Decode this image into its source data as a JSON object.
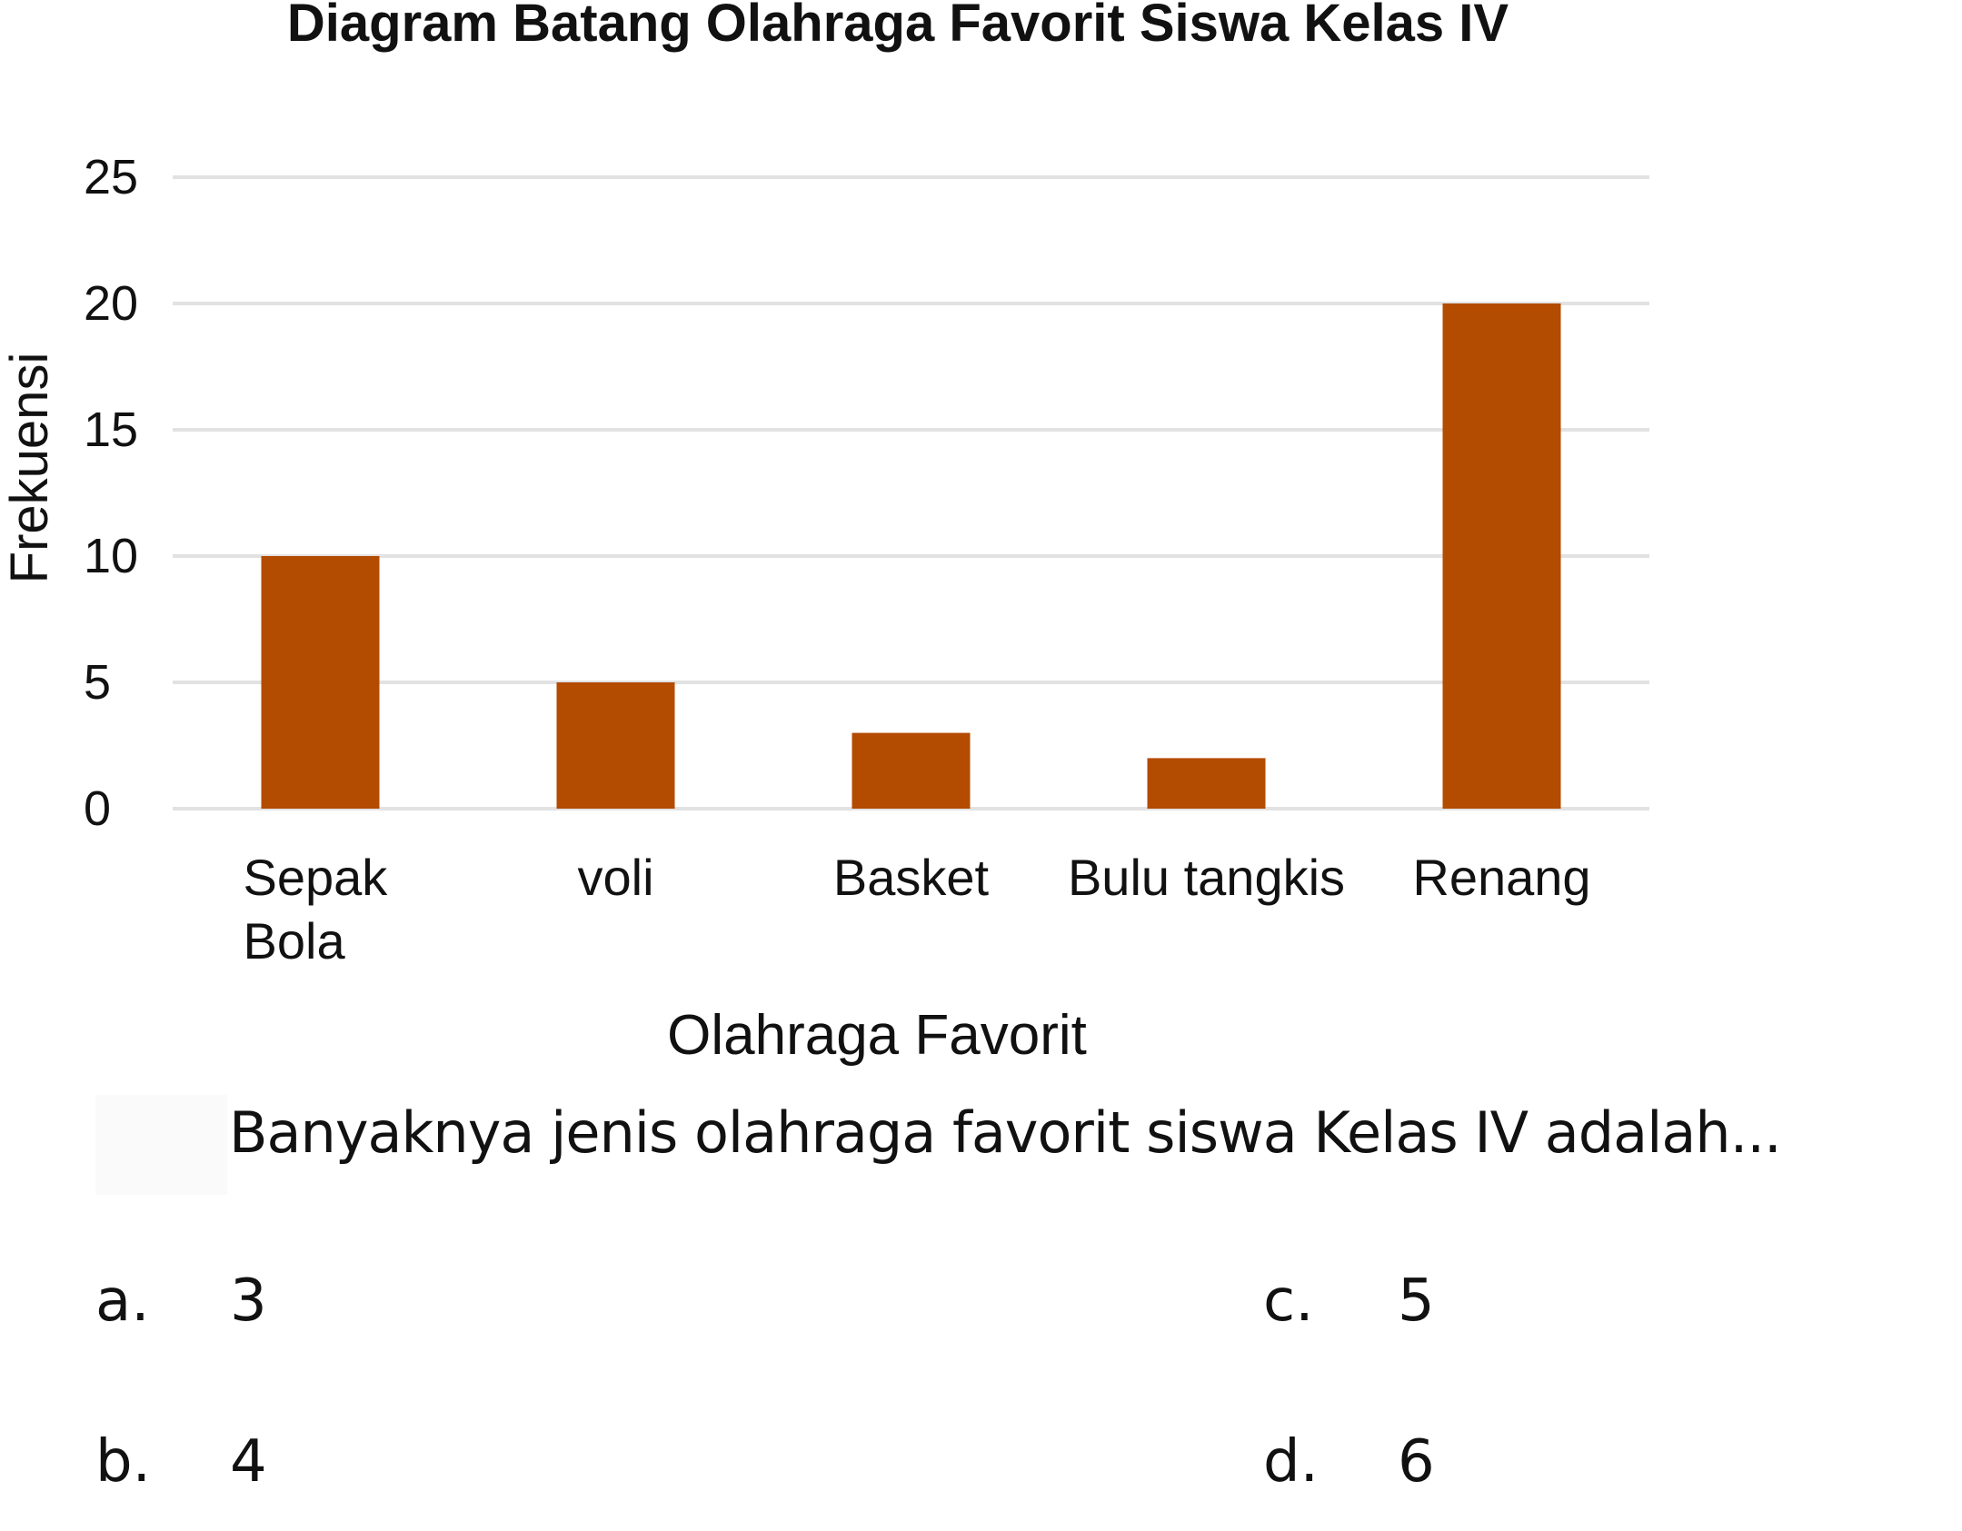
{
  "chart_data": {
    "type": "bar",
    "title": "Diagram Batang Olahraga Favorit Siswa Kelas IV",
    "xlabel": "Olahraga Favorit",
    "ylabel": "Frekuensi",
    "categories": [
      [
        "Sepak",
        "Bola"
      ],
      [
        "voli"
      ],
      [
        "Basket"
      ],
      [
        "Bulu tangkis"
      ],
      [
        "Renang"
      ]
    ],
    "values": [
      10,
      5,
      3,
      2,
      20
    ],
    "ylim": [
      0,
      25
    ],
    "yticks": [
      "0",
      "5",
      "10",
      "15",
      "20",
      "25"
    ],
    "grid": true,
    "legend": "none",
    "bar_color": "#b34b00"
  },
  "question": {
    "text": "Banyaknya jenis olahraga favorit siswa Kelas IV adalah...",
    "options": [
      {
        "letter": "a.",
        "value": "3"
      },
      {
        "letter": "b.",
        "value": "4"
      },
      {
        "letter": "c.",
        "value": "5"
      },
      {
        "letter": "d.",
        "value": "6"
      }
    ]
  }
}
